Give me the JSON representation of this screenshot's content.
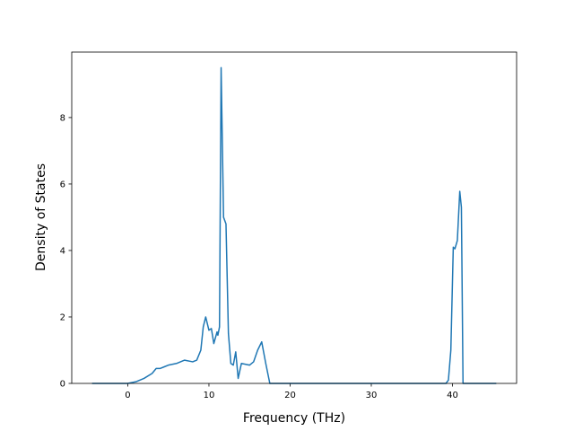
{
  "chart_data": {
    "type": "line",
    "xlabel": "Frequency (THz)",
    "ylabel": "Density of States",
    "x": [
      -4.4,
      0,
      1,
      2,
      3,
      3.5,
      4,
      4.5,
      5,
      6,
      6.5,
      7,
      8,
      8.5,
      9,
      9.3,
      9.6,
      10,
      10.3,
      10.6,
      11,
      11.1,
      11.3,
      11.5,
      11.8,
      12.1,
      12.4,
      12.7,
      13,
      13.3,
      13.6,
      14,
      15,
      15.5,
      16,
      16.5,
      17,
      17.5,
      39.2,
      39.5,
      39.8,
      40.1,
      40.3,
      40.6,
      40.9,
      41.1,
      41.3,
      45.4
    ],
    "series": [
      {
        "color": "#1f77b4",
        "values": [
          0,
          0,
          0.05,
          0.15,
          0.3,
          0.45,
          0.45,
          0.5,
          0.55,
          0.6,
          0.65,
          0.7,
          0.65,
          0.7,
          1.0,
          1.7,
          2.0,
          1.6,
          1.65,
          1.2,
          1.55,
          1.45,
          1.7,
          9.5,
          5.0,
          4.8,
          1.5,
          0.6,
          0.55,
          0.95,
          0.15,
          0.6,
          0.55,
          0.65,
          1.0,
          1.25,
          0.6,
          0,
          0,
          0.1,
          1.0,
          4.1,
          4.05,
          4.3,
          5.78,
          5.3,
          0,
          0
        ]
      }
    ],
    "xlim": [
      -6.9,
      47.9
    ],
    "ylim": [
      0,
      9.97
    ],
    "xticks": [
      0,
      10,
      20,
      30,
      40
    ],
    "yticks": [
      0,
      2,
      4,
      6,
      8
    ]
  }
}
